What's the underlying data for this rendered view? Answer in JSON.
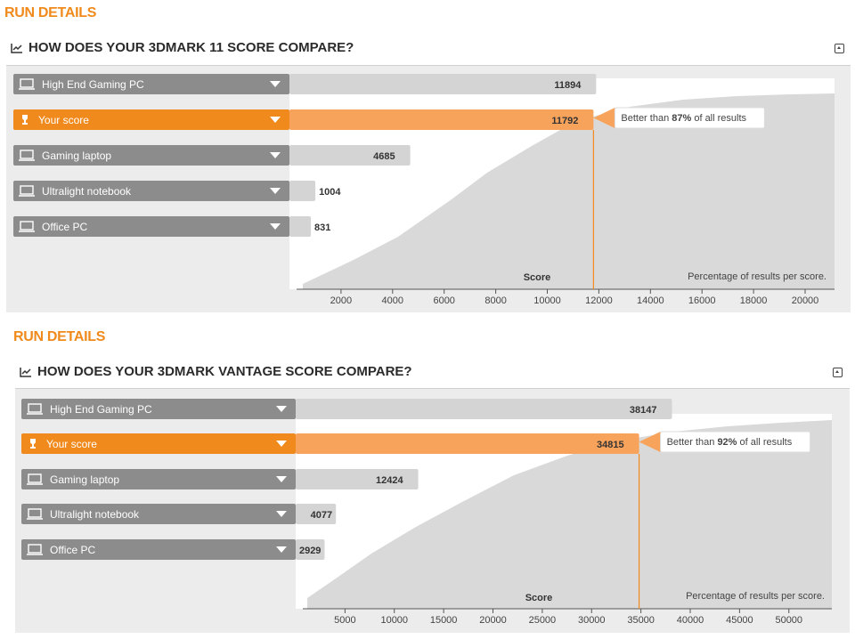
{
  "sections": [
    {
      "run_title": "RUN DETAILS",
      "heading": "HOW DOES YOUR 3DMARK 11 SCORE COMPARE?",
      "score_label": "Score",
      "dist_label": "Percentage of results per score.",
      "better_than": {
        "prefix": "Better than ",
        "value": "87%",
        "suffix": " of all results"
      }
    },
    {
      "run_title": "RUN DETAILS",
      "heading": "HOW DOES YOUR 3DMARK VANTAGE SCORE COMPARE?",
      "score_label": "Score",
      "dist_label": "Percentage of results per score.",
      "better_than": {
        "prefix": "Better than ",
        "value": "92%",
        "suffix": " of all results"
      }
    }
  ],
  "chart_data": [
    {
      "type": "bar",
      "title": "HOW DOES YOUR 3DMARK 11 SCORE COMPARE?",
      "categories": [
        "High End Gaming PC",
        "Your score",
        "Gaming laptop",
        "Ultralight notebook",
        "Office PC"
      ],
      "values": [
        11894,
        11792,
        4685,
        1004,
        831
      ],
      "highlight": "Your score",
      "xlabel": "Score",
      "xlim": [
        0,
        21300
      ],
      "x_ticks": [
        2000,
        4000,
        6000,
        8000,
        10000,
        12000,
        14000,
        16000,
        18000,
        20000
      ],
      "user_score": 11792,
      "percentile_text": "Better than 87% of all results",
      "colors": {
        "highlight": "#f08a1c",
        "bar": "#d6d6d6",
        "label": "#8c8c8c"
      }
    },
    {
      "type": "bar",
      "title": "HOW DOES YOUR 3DMARK VANTAGE SCORE COMPARE?",
      "categories": [
        "High End Gaming PC",
        "Your score",
        "Gaming laptop",
        "Ultralight notebook",
        "Office PC"
      ],
      "values": [
        38147,
        34815,
        12424,
        4077,
        2929
      ],
      "highlight": "Your score",
      "xlabel": "Score",
      "xlim": [
        0,
        53900
      ],
      "x_ticks": [
        5000,
        10000,
        15000,
        20000,
        25000,
        30000,
        35000,
        40000,
        45000,
        50000
      ],
      "user_score": 34815,
      "percentile_text": "Better than 92% of all results",
      "colors": {
        "highlight": "#f08a1c",
        "bar": "#d6d6d6",
        "label": "#8c8c8c"
      }
    }
  ]
}
